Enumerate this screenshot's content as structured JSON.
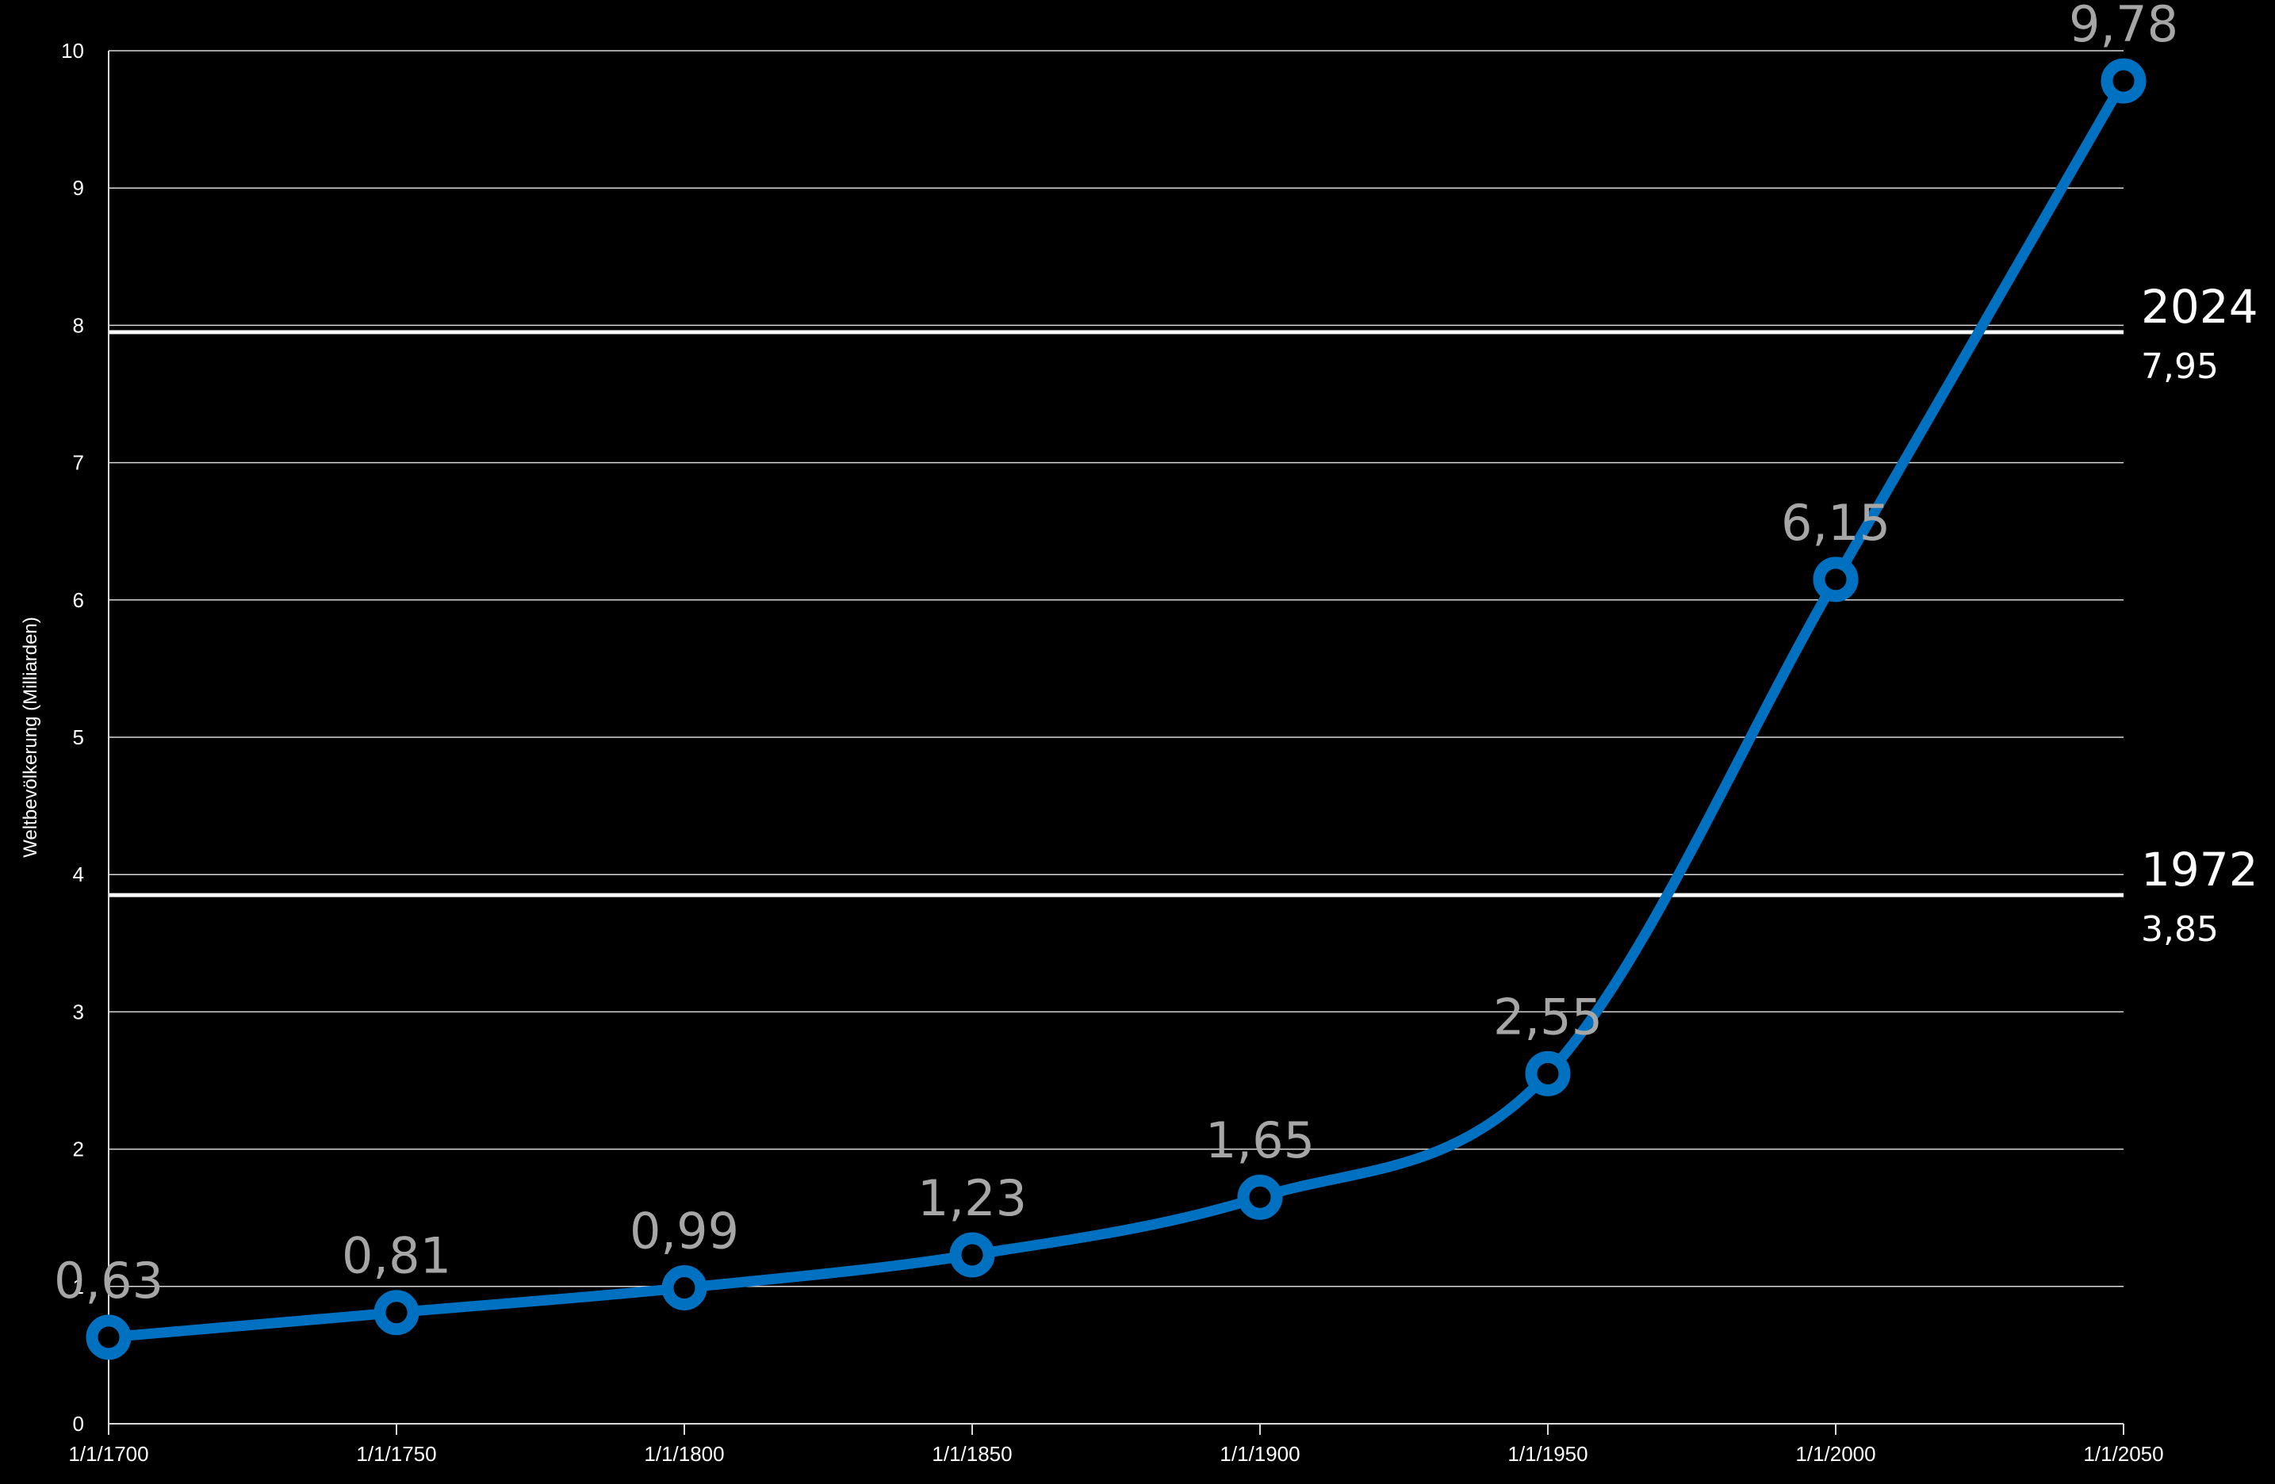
{
  "chart_data": {
    "type": "line",
    "title": "",
    "xlabel": "",
    "ylabel": "Weltbevölkerung (Milliarden)",
    "ylim": [
      0,
      10
    ],
    "yticks": [
      "0",
      "1",
      "2",
      "3",
      "4",
      "5",
      "6",
      "7",
      "8",
      "9",
      "10"
    ],
    "grid": true,
    "smooth": true,
    "line_color": "#0070c0",
    "x": [
      "1/1/1700",
      "1/1/1750",
      "1/1/1800",
      "1/1/1850",
      "1/1/1900",
      "1/1/1950",
      "1/1/2000",
      "1/1/2050"
    ],
    "values": [
      0.63,
      0.81,
      0.99,
      1.23,
      1.65,
      2.55,
      6.15,
      9.78
    ],
    "data_labels": [
      "0,63",
      "0,81",
      "0,99",
      "1,23",
      "1,65",
      "2,55",
      "6,15",
      "9,78"
    ],
    "reference_lines": [
      {
        "year": "1972",
        "value": 3.85,
        "label": "3,85"
      },
      {
        "year": "2024",
        "value": 7.95,
        "label": "7,95"
      }
    ]
  }
}
